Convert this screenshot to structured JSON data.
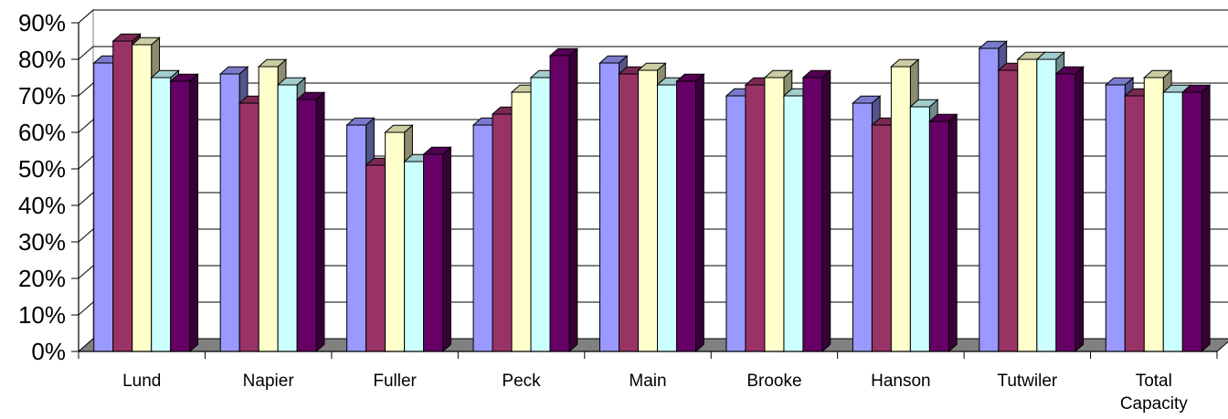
{
  "chart_data": {
    "type": "bar",
    "style": "3d-clustered",
    "categories": [
      "Lund",
      "Napier",
      "Fuller",
      "Peck",
      "Main",
      "Brooke",
      "Hanson",
      "Tutwiler",
      "Total Capacity"
    ],
    "series": [
      {
        "color": "#9999ff",
        "values": [
          79,
          76,
          62,
          62,
          79,
          70,
          68,
          83,
          73
        ]
      },
      {
        "color": "#993366",
        "values": [
          85,
          68,
          51,
          65,
          76,
          73,
          62,
          77,
          70
        ]
      },
      {
        "color": "#ffffcc",
        "values": [
          84,
          78,
          60,
          71,
          77,
          75,
          78,
          80,
          75
        ]
      },
      {
        "color": "#ccffff",
        "values": [
          75,
          73,
          52,
          75,
          73,
          70,
          67,
          80,
          71
        ]
      },
      {
        "color": "#660066",
        "values": [
          74,
          69,
          54,
          81,
          74,
          75,
          63,
          76,
          71
        ]
      }
    ],
    "yticks": [
      "0%",
      "10%",
      "20%",
      "30%",
      "40%",
      "50%",
      "60%",
      "70%",
      "80%",
      "90%"
    ],
    "ylim": [
      0,
      90
    ],
    "grid": true,
    "legend": "none",
    "floor_color": "#808080"
  }
}
